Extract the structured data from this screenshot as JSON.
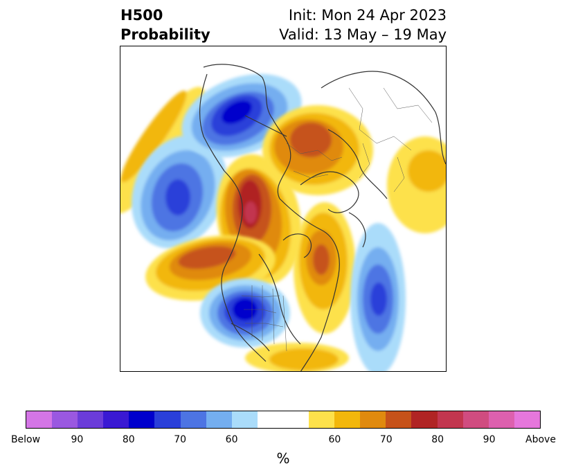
{
  "title": {
    "left_line1": "H500",
    "left_line2": "Probability",
    "right_line1": "Init: Mon 24 Apr 2023",
    "right_line2": "Valid: 13 May – 19 May"
  },
  "colorbar": {
    "unit": "%",
    "colors": [
      "#d475e6",
      "#9a58e0",
      "#6b3cd9",
      "#3a19d3",
      "#0000cc",
      "#2a3fd9",
      "#4d74e3",
      "#74aef0",
      "#aadcfa",
      "#ffffff",
      "#ffffff",
      "#fde14b",
      "#f2b70b",
      "#e08a0e",
      "#c6521a",
      "#b02424",
      "#c2364f",
      "#d04c80",
      "#dd60ae",
      "#e677dc"
    ],
    "tick_labels": [
      "Below",
      "90",
      "80",
      "70",
      "60",
      "60",
      "70",
      "80",
      "90",
      "Above"
    ]
  },
  "icons": {
    "map": "north-america-polar-stereographic-map"
  }
}
